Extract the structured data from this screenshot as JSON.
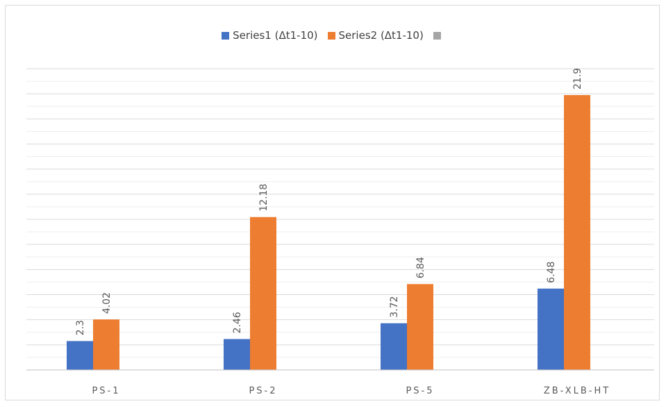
{
  "chart_data": {
    "type": "bar",
    "categories": [
      "PS-1",
      "PS-2",
      "PS-5",
      "ZB-XLB-HT"
    ],
    "series": [
      {
        "name": "Series1 (Δt1-10)",
        "values": [
          2.3,
          2.46,
          3.72,
          6.48
        ],
        "color": "#4472c4"
      },
      {
        "name": "Series2 (Δt1-10)",
        "values": [
          4.02,
          12.18,
          6.84,
          21.9
        ],
        "color": "#ed7d31"
      }
    ],
    "legend_extra": {
      "name": "",
      "color": "#a5a5a5"
    },
    "ylim": [
      0,
      24
    ],
    "grid": true,
    "legend_position": "top",
    "data_labels": true
  }
}
